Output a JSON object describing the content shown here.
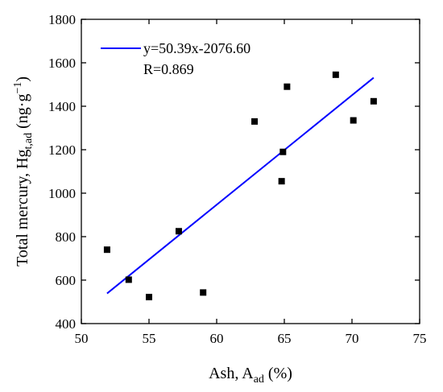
{
  "chart_data": {
    "type": "scatter",
    "xlabel": {
      "main": "Ash, A",
      "sub": "ad",
      "suffix": " (%)"
    },
    "ylabel": {
      "main": "Total mercury, Hg",
      "sub": "t,ad",
      "mid": " (ng·g",
      "sup": "−1",
      "suffix": ")"
    },
    "xlim": [
      50,
      75
    ],
    "ylim": [
      400,
      1800
    ],
    "xticks": [
      50,
      55,
      60,
      65,
      70,
      75
    ],
    "yticks": [
      400,
      600,
      800,
      1000,
      1200,
      1400,
      1600,
      1800
    ],
    "points": [
      {
        "x": 51.9,
        "y": 740
      },
      {
        "x": 53.5,
        "y": 602
      },
      {
        "x": 55.0,
        "y": 522
      },
      {
        "x": 57.2,
        "y": 825
      },
      {
        "x": 59.0,
        "y": 543
      },
      {
        "x": 62.8,
        "y": 1330
      },
      {
        "x": 64.8,
        "y": 1055
      },
      {
        "x": 64.9,
        "y": 1190
      },
      {
        "x": 65.2,
        "y": 1490
      },
      {
        "x": 68.8,
        "y": 1545
      },
      {
        "x": 70.1,
        "y": 1335
      },
      {
        "x": 71.6,
        "y": 1423
      }
    ],
    "fit": {
      "slope": 50.39,
      "intercept": -2076.6,
      "x_range": [
        51.9,
        71.6
      ],
      "equation_label": "y=50.39x-2076.60",
      "r_label": "R=0.869",
      "color": "#0000ff"
    },
    "marker_color": "#000000",
    "legend_position": "top-left",
    "grid": false
  }
}
